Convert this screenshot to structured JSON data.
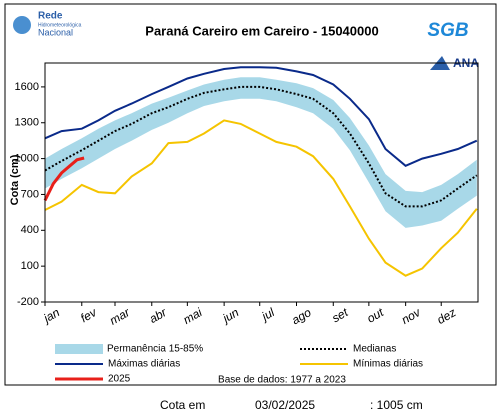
{
  "chart_data": {
    "type": "line",
    "title": "Paraná Careiro em Careiro - 15040000",
    "logo_text": [
      "Rede",
      "Hidrometeorológica",
      "Nacional"
    ],
    "agency_logos": [
      "SGB",
      "ANA"
    ],
    "ylabel": "Cota (cm)",
    "ylim": [
      -200,
      1800
    ],
    "yticks": [
      -200,
      100,
      400,
      700,
      1000,
      1300,
      1600
    ],
    "xlim": [
      1,
      366
    ],
    "xticks": [
      {
        "value": 1,
        "label": "jan"
      },
      {
        "value": 32,
        "label": "fev"
      },
      {
        "value": 60,
        "label": "mar"
      },
      {
        "value": 91,
        "label": "abr"
      },
      {
        "value": 121,
        "label": "mai"
      },
      {
        "value": 152,
        "label": "jun"
      },
      {
        "value": 182,
        "label": "jul"
      },
      {
        "value": 213,
        "label": "ago"
      },
      {
        "value": 244,
        "label": "set"
      },
      {
        "value": 274,
        "label": "out"
      },
      {
        "value": 305,
        "label": "nov"
      },
      {
        "value": 335,
        "label": "dez"
      }
    ],
    "x": [
      1,
      15,
      32,
      46,
      60,
      74,
      91,
      105,
      121,
      135,
      152,
      166,
      182,
      196,
      213,
      227,
      244,
      258,
      274,
      288,
      305,
      319,
      335,
      349,
      365
    ],
    "series": [
      {
        "name": "Permanência 15-85%",
        "color": "#a8d8e8",
        "kind": "band",
        "values": [
          1000,
          1080,
          1170,
          1250,
          1320,
          1380,
          1460,
          1510,
          1570,
          1620,
          1660,
          1680,
          1680,
          1660,
          1630,
          1590,
          1490,
          1340,
          1110,
          870,
          730,
          720,
          780,
          870,
          990
        ],
        "lower": [
          750,
          830,
          920,
          1000,
          1080,
          1150,
          1240,
          1300,
          1380,
          1440,
          1480,
          1500,
          1500,
          1480,
          1430,
          1380,
          1250,
          1070,
          800,
          560,
          420,
          440,
          480,
          580,
          690
        ]
      },
      {
        "name": "Medianas",
        "color": "#000000",
        "kind": "dotted",
        "values": [
          900,
          980,
          1070,
          1150,
          1230,
          1290,
          1380,
          1430,
          1500,
          1550,
          1580,
          1600,
          1600,
          1580,
          1540,
          1500,
          1380,
          1210,
          960,
          710,
          600,
          600,
          650,
          750,
          860
        ]
      },
      {
        "name": "Máximas diárias",
        "color": "#0a2a8a",
        "kind": "solid",
        "values": [
          1170,
          1230,
          1250,
          1320,
          1400,
          1460,
          1540,
          1600,
          1670,
          1710,
          1750,
          1765,
          1765,
          1760,
          1730,
          1700,
          1620,
          1500,
          1330,
          1080,
          940,
          1000,
          1040,
          1080,
          1150
        ]
      },
      {
        "name": "Mínimas diárias",
        "color": "#f5c400",
        "kind": "solid",
        "values": [
          570,
          640,
          780,
          720,
          710,
          850,
          960,
          1130,
          1140,
          1210,
          1320,
          1290,
          1210,
          1140,
          1100,
          1020,
          830,
          600,
          330,
          130,
          20,
          80,
          250,
          380,
          580
        ]
      },
      {
        "name": "2025",
        "color": "#e8201a",
        "kind": "thick",
        "x": [
          1,
          8,
          15,
          22,
          28,
          34
        ],
        "values": [
          650,
          790,
          880,
          940,
          990,
          1005
        ]
      }
    ],
    "base_note": "Base de dados: 1977 a 2023",
    "footer": {
      "label": "Cota em",
      "date": "03/02/2025",
      "value": ": 1005 cm"
    }
  }
}
